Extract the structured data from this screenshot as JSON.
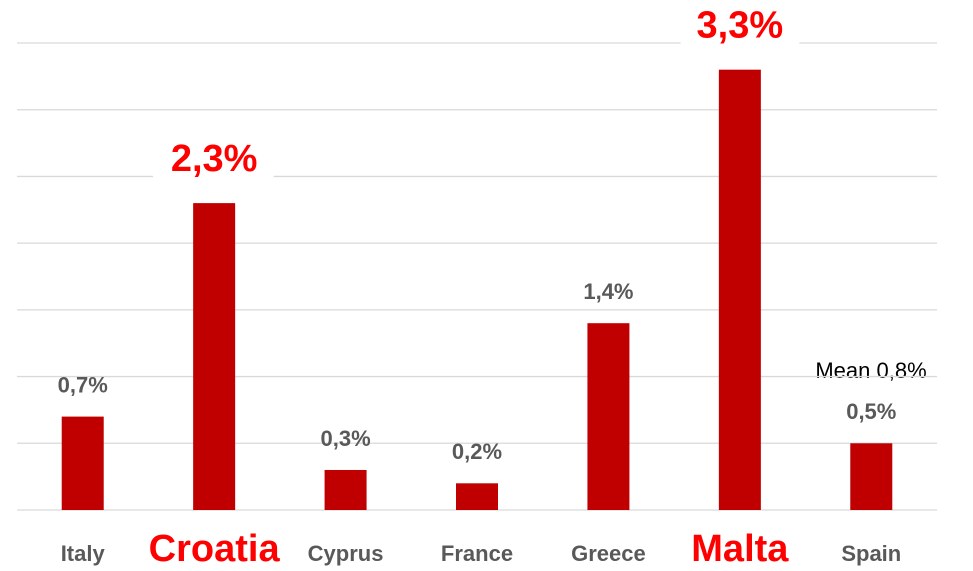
{
  "chart_data": {
    "type": "bar",
    "categories": [
      "Italy",
      "Croatia",
      "Cyprus",
      "France",
      "Greece",
      "Malta",
      "Spain"
    ],
    "values": [
      0.7,
      2.3,
      0.3,
      0.2,
      1.4,
      3.3,
      0.5
    ],
    "value_labels": [
      "0,7%",
      "2,3%",
      "0,3%",
      "0,2%",
      "1,4%",
      "3,3%",
      "0,5%"
    ],
    "color": "#c00000",
    "highlight": [
      1,
      5
    ],
    "highlight_color": "#ff0000",
    "annotation": "Mean 0,8%",
    "ylim": [
      0,
      3.5
    ],
    "yticks": [
      0,
      0.5,
      1,
      1.5,
      2,
      2.5,
      3,
      3.5
    ],
    "grid": true
  }
}
